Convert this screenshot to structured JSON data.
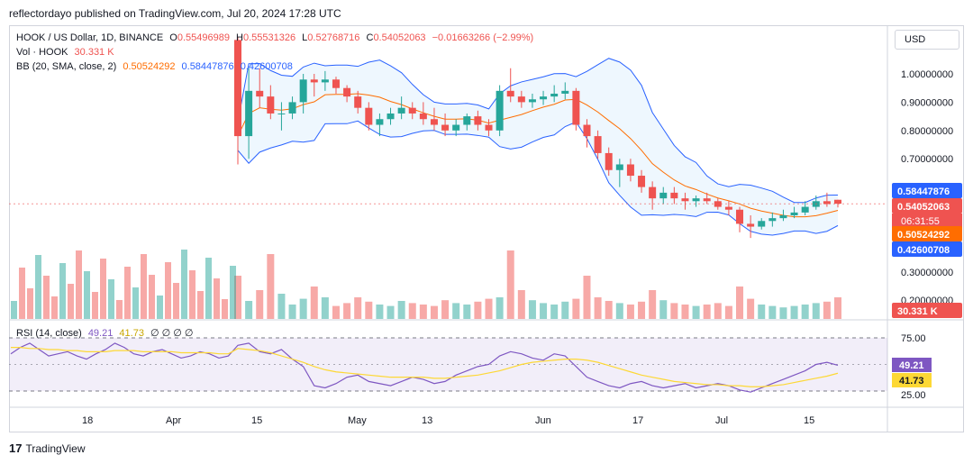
{
  "header": {
    "publisher": "reflectordayo published on TradingView.com, Jul 20, 2024 17:28 UTC"
  },
  "legend": {
    "symbol": "HOOK / US Dollar, 1D, BINANCE",
    "open_label": "O",
    "open": "0.55496989",
    "high_label": "H",
    "high": "0.55531326",
    "low_label": "L",
    "low": "0.52768716",
    "close_label": "C",
    "close": "0.54052063",
    "change": "−0.01663266 (−2.99%)",
    "vol_label": "Vol · HOOK",
    "vol": "30.331 K",
    "bb_label": "BB (20, SMA, close, 2)",
    "bb_basis": "0.50524292",
    "bb_upper": "0.58447876",
    "bb_lower": "0.42600708",
    "rsi_label": "RSI (14, close)",
    "rsi": "49.21",
    "rsi_ma": "41.73",
    "rsi_rest": "∅  ∅  ∅  ∅"
  },
  "currency_button": "USD",
  "footer": {
    "logo_text": "TradingView"
  },
  "colors": {
    "up": "#26a69a",
    "down": "#ef5350",
    "bb_band": "#2962ff",
    "bb_basis": "#ff6d00",
    "rsi": "#7e57c2",
    "rsi_ma": "#fdd835"
  },
  "chart_data": {
    "type": "candlestick",
    "price_axis_ticks": [
      "1.00000000",
      "0.90000000",
      "0.80000000",
      "0.70000000",
      "0.30000000",
      "0.20000000"
    ],
    "x_tick_labels": [
      "18",
      "Apr",
      "15",
      "May",
      "13",
      "Jun",
      "17",
      "Jul",
      "15"
    ],
    "price_labels": {
      "upper": "0.58447876",
      "close": "0.54052063",
      "countdown": "06:31:55",
      "basis": "0.50524292",
      "lower": "0.42600708",
      "volume": "30.331 K"
    },
    "rsi_axis_ticks": [
      "75.00",
      "25.00"
    ],
    "rsi_labels": {
      "rsi": "49.21",
      "rsi_ma": "41.73"
    },
    "candles_ohlc_approx": [
      [
        1.12,
        1.13,
        0.68,
        0.78
      ],
      [
        0.78,
        1.02,
        0.7,
        0.94
      ],
      [
        0.94,
        1.02,
        0.88,
        0.92
      ],
      [
        0.92,
        0.96,
        0.84,
        0.86
      ],
      [
        0.86,
        0.9,
        0.8,
        0.86
      ],
      [
        0.86,
        0.92,
        0.84,
        0.9
      ],
      [
        0.9,
        1.0,
        0.86,
        0.98
      ],
      [
        0.98,
        1.0,
        0.92,
        0.97
      ],
      [
        0.97,
        1.01,
        0.94,
        0.98
      ],
      [
        0.98,
        0.99,
        0.93,
        0.95
      ],
      [
        0.95,
        0.96,
        0.9,
        0.92
      ],
      [
        0.92,
        0.94,
        0.86,
        0.88
      ],
      [
        0.88,
        0.9,
        0.8,
        0.82
      ],
      [
        0.82,
        0.86,
        0.78,
        0.84
      ],
      [
        0.84,
        0.88,
        0.82,
        0.86
      ],
      [
        0.86,
        0.92,
        0.84,
        0.88
      ],
      [
        0.88,
        0.9,
        0.84,
        0.86
      ],
      [
        0.86,
        0.9,
        0.82,
        0.84
      ],
      [
        0.84,
        0.88,
        0.8,
        0.82
      ],
      [
        0.82,
        0.86,
        0.78,
        0.8
      ],
      [
        0.8,
        0.84,
        0.78,
        0.82
      ],
      [
        0.82,
        0.86,
        0.8,
        0.85
      ],
      [
        0.85,
        0.87,
        0.8,
        0.82
      ],
      [
        0.82,
        0.84,
        0.78,
        0.8
      ],
      [
        0.8,
        0.96,
        0.78,
        0.94
      ],
      [
        0.94,
        1.02,
        0.9,
        0.92
      ],
      [
        0.92,
        0.94,
        0.88,
        0.9
      ],
      [
        0.9,
        0.93,
        0.88,
        0.91
      ],
      [
        0.91,
        0.94,
        0.89,
        0.92
      ],
      [
        0.92,
        0.96,
        0.9,
        0.93
      ],
      [
        0.93,
        0.97,
        0.91,
        0.94
      ],
      [
        0.94,
        0.95,
        0.8,
        0.82
      ],
      [
        0.82,
        0.84,
        0.74,
        0.78
      ],
      [
        0.78,
        0.8,
        0.7,
        0.72
      ],
      [
        0.72,
        0.74,
        0.64,
        0.66
      ],
      [
        0.66,
        0.7,
        0.6,
        0.68
      ],
      [
        0.68,
        0.7,
        0.62,
        0.64
      ],
      [
        0.64,
        0.66,
        0.58,
        0.6
      ],
      [
        0.6,
        0.62,
        0.52,
        0.56
      ],
      [
        0.56,
        0.6,
        0.54,
        0.58
      ],
      [
        0.58,
        0.6,
        0.54,
        0.56
      ],
      [
        0.56,
        0.58,
        0.52,
        0.55
      ],
      [
        0.55,
        0.57,
        0.53,
        0.56
      ],
      [
        0.56,
        0.58,
        0.54,
        0.55
      ],
      [
        0.55,
        0.56,
        0.52,
        0.53
      ],
      [
        0.53,
        0.55,
        0.5,
        0.52
      ],
      [
        0.52,
        0.53,
        0.44,
        0.47
      ],
      [
        0.47,
        0.5,
        0.42,
        0.46
      ],
      [
        0.46,
        0.49,
        0.45,
        0.48
      ],
      [
        0.48,
        0.51,
        0.46,
        0.49
      ],
      [
        0.49,
        0.52,
        0.48,
        0.5
      ],
      [
        0.5,
        0.53,
        0.49,
        0.51
      ],
      [
        0.51,
        0.55,
        0.5,
        0.53
      ],
      [
        0.53,
        0.57,
        0.52,
        0.55
      ],
      [
        0.55,
        0.58,
        0.53,
        0.54
      ],
      [
        0.555,
        0.555,
        0.528,
        0.541
      ]
    ],
    "volume_k_approx": [
      60,
      25,
      40,
      90,
      35,
      20,
      28,
      45,
      30,
      18,
      22,
      30,
      24,
      20,
      18,
      25,
      22,
      20,
      18,
      26,
      22,
      20,
      24,
      28,
      30,
      95,
      40,
      26,
      22,
      20,
      24,
      28,
      60,
      30,
      25,
      22,
      20,
      24,
      40,
      26,
      22,
      20,
      18,
      20,
      22,
      18,
      45,
      28,
      20,
      18,
      16,
      18,
      20,
      22,
      24,
      30
    ],
    "rsi_approx": [
      68,
      70,
      62,
      60,
      64,
      55,
      48,
      30,
      28,
      32,
      38,
      40,
      34,
      32,
      30,
      34,
      38,
      36,
      32,
      34,
      40,
      44,
      48,
      50,
      58,
      62,
      60,
      56,
      54,
      60,
      58,
      48,
      38,
      34,
      30,
      28,
      32,
      34,
      30,
      28,
      30,
      32,
      28,
      30,
      32,
      30,
      26,
      24,
      28,
      32,
      36,
      40,
      44,
      50,
      52,
      49.21
    ],
    "rsi_ma_approx": [
      65,
      64,
      63,
      61,
      58,
      55,
      52,
      48,
      45,
      43,
      42,
      41,
      40,
      39,
      38,
      38,
      38,
      38,
      37,
      37,
      38,
      39,
      40,
      42,
      44,
      47,
      50,
      52,
      53,
      54,
      55,
      55,
      54,
      52,
      49,
      46,
      43,
      40,
      38,
      36,
      34,
      33,
      32,
      31,
      31,
      30,
      30,
      29,
      29,
      30,
      31,
      33,
      35,
      37,
      39,
      41.73
    ]
  }
}
